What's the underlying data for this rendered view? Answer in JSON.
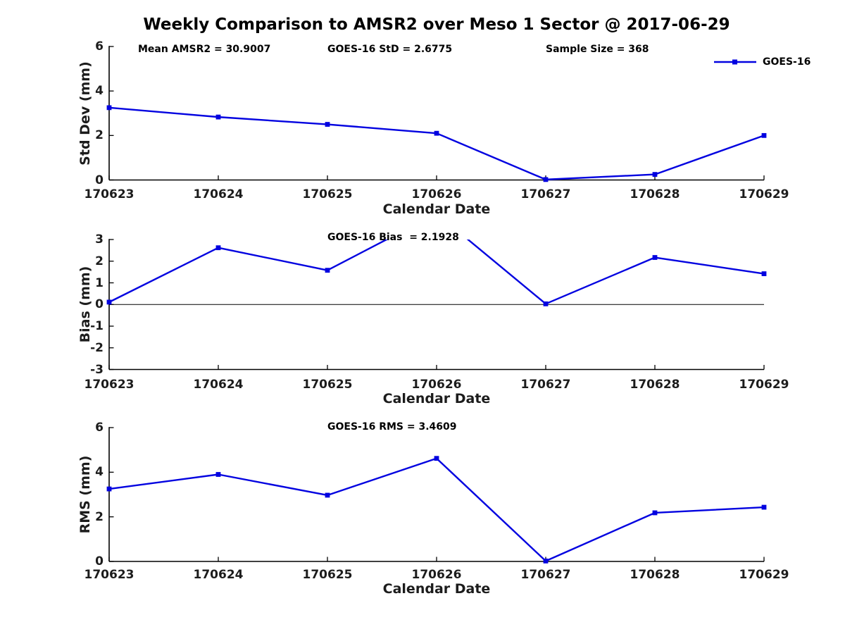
{
  "title": "Weekly Comparison to AMSR2 over Meso 1 Sector @ 2017-06-29",
  "legend": {
    "label": "GOES-16"
  },
  "colors": {
    "line": "#0202E0",
    "axis": "#000000",
    "zero_line": "#000000",
    "tick_text": "#1c1c1c"
  },
  "chart_data": [
    {
      "type": "line",
      "categories": [
        "170623",
        "170624",
        "170625",
        "170626",
        "170627",
        "170628",
        "170629"
      ],
      "series": [
        {
          "name": "GOES-16",
          "values": [
            3.25,
            2.83,
            2.5,
            2.1,
            0.02,
            0.25,
            2.0
          ]
        }
      ],
      "xlabel": "Calendar Date",
      "ylabel": "Std Dev (mm)",
      "ylim": [
        0,
        6
      ],
      "yticks": [
        0,
        2,
        4,
        6
      ],
      "zero_line": false,
      "grid": false,
      "legend_position": "top-right",
      "annotations": [
        "Mean AMSR2 = 30.9007",
        "GOES-16 StD = 2.6775",
        "Sample Size = 368"
      ]
    },
    {
      "type": "line",
      "categories": [
        "170623",
        "170624",
        "170625",
        "170626",
        "170627",
        "170628",
        "170629"
      ],
      "series": [
        {
          "name": "GOES-16",
          "values": [
            0.11,
            2.62,
            1.58,
            4.2,
            0.03,
            2.17,
            1.42
          ]
        }
      ],
      "xlabel": "Calendar Date",
      "ylabel": "Bias (mm)",
      "ylim": [
        -3,
        3
      ],
      "yticks": [
        -3,
        -2,
        -1,
        0,
        1,
        2,
        3
      ],
      "zero_line": true,
      "grid": false,
      "note": "value at 170626 exceeds axis top and is clipped",
      "annotations": [
        "GOES-16 Bias  = 2.1928"
      ]
    },
    {
      "type": "line",
      "categories": [
        "170623",
        "170624",
        "170625",
        "170626",
        "170627",
        "170628",
        "170629"
      ],
      "series": [
        {
          "name": "GOES-16",
          "values": [
            3.25,
            3.9,
            2.97,
            4.62,
            0.02,
            2.18,
            2.43
          ]
        }
      ],
      "xlabel": "Calendar Date",
      "ylabel": "RMS (mm)",
      "ylim": [
        0,
        6
      ],
      "yticks": [
        0,
        2,
        4,
        6
      ],
      "zero_line": false,
      "grid": false,
      "annotations": [
        "GOES-16 RMS = 3.4609"
      ]
    }
  ]
}
